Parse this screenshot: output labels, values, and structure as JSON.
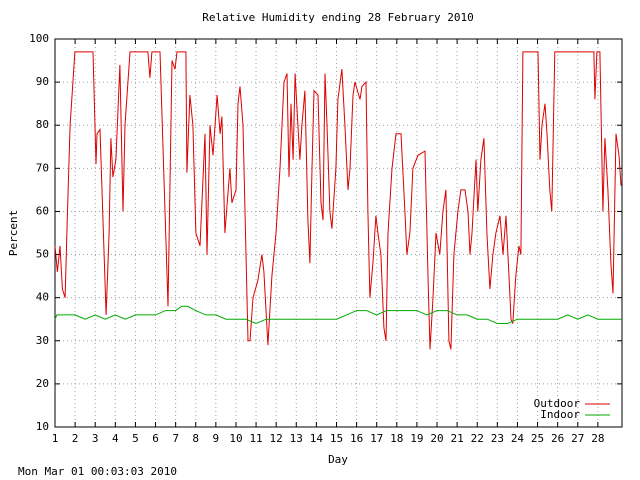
{
  "chart_data": {
    "type": "line",
    "title": "Relative Humidity ending 28 February 2010",
    "xlabel": "Day",
    "ylabel": "Percent",
    "xlim": [
      1,
      29.2
    ],
    "ylim": [
      10,
      100
    ],
    "xticks": [
      1,
      2,
      3,
      4,
      5,
      6,
      7,
      8,
      9,
      10,
      11,
      12,
      13,
      14,
      15,
      16,
      17,
      18,
      19,
      20,
      21,
      22,
      23,
      24,
      25,
      26,
      27,
      28
    ],
    "yticks": [
      10,
      20,
      30,
      40,
      50,
      60,
      70,
      80,
      90,
      100
    ],
    "grid": true,
    "legend": "lower right",
    "series": [
      {
        "name": "Outdoor",
        "color": "#dd0000",
        "x": [
          1.0,
          1.12,
          1.25,
          1.37,
          1.5,
          1.62,
          1.75,
          1.99,
          2.89,
          3.04,
          3.09,
          3.24,
          3.54,
          3.69,
          3.78,
          3.88,
          4.03,
          4.23,
          4.38,
          4.48,
          4.73,
          5.62,
          5.72,
          5.82,
          6.22,
          6.62,
          6.82,
          6.97,
          7.07,
          7.51,
          7.56,
          7.71,
          7.86,
          8.01,
          8.21,
          8.46,
          8.56,
          8.71,
          8.86,
          9.06,
          9.21,
          9.3,
          9.45,
          9.7,
          9.8,
          10.0,
          10.1,
          10.2,
          10.35,
          10.6,
          10.7,
          10.85,
          11.09,
          11.29,
          11.39,
          11.59,
          11.79,
          11.99,
          12.19,
          12.39,
          12.54,
          12.64,
          12.74,
          12.84,
          12.94,
          13.08,
          13.18,
          13.28,
          13.43,
          13.58,
          13.68,
          13.78,
          13.88,
          14.08,
          14.23,
          14.33,
          14.43,
          14.53,
          14.67,
          14.77,
          14.97,
          15.07,
          15.27,
          15.42,
          15.57,
          15.67,
          15.82,
          15.92,
          16.17,
          16.27,
          16.47,
          16.56,
          16.66,
          16.81,
          16.96,
          17.06,
          17.21,
          17.36,
          17.46,
          17.56,
          17.76,
          17.96,
          18.21,
          18.4,
          18.5,
          18.65,
          18.8,
          19.05,
          19.4,
          19.55,
          19.65,
          19.8,
          19.95,
          20.14,
          20.29,
          20.44,
          20.59,
          20.69,
          20.84,
          21.04,
          21.19,
          21.39,
          21.54,
          21.64,
          21.74,
          21.94,
          22.03,
          22.18,
          22.33,
          22.48,
          22.63,
          22.78,
          22.93,
          23.13,
          23.28,
          23.43,
          23.58,
          23.68,
          23.77,
          23.92,
          24.07,
          24.17,
          24.27,
          25.02,
          25.12,
          25.22,
          25.37,
          25.47,
          25.61,
          25.71,
          25.86,
          27.8,
          27.85,
          27.95,
          28.1,
          28.25,
          28.35,
          28.5,
          28.65,
          28.75,
          28.9,
          29.05,
          29.15
        ],
        "values": [
          52,
          46,
          52,
          42,
          40,
          60,
          80,
          97,
          97,
          71,
          78,
          79,
          36,
          55,
          77,
          68,
          72,
          94,
          60,
          80,
          97,
          97,
          91,
          97,
          97,
          38,
          95,
          93,
          97,
          97,
          69,
          87,
          80,
          55,
          52,
          78,
          50,
          80,
          73,
          87,
          78,
          82,
          55,
          70,
          62,
          65,
          85,
          89,
          80,
          30,
          30,
          40,
          44,
          50,
          46,
          29,
          45,
          55,
          70,
          90,
          92,
          68,
          85,
          72,
          92,
          80,
          72,
          80,
          88,
          58,
          48,
          70,
          88,
          87,
          62,
          58,
          92,
          80,
          60,
          56,
          70,
          86,
          93,
          80,
          65,
          70,
          87,
          90,
          86,
          89,
          90,
          60,
          40,
          48,
          59,
          55,
          50,
          33,
          30,
          55,
          70,
          78,
          78,
          60,
          50,
          55,
          70,
          73,
          74,
          45,
          28,
          40,
          55,
          50,
          60,
          65,
          30,
          28,
          50,
          60,
          65,
          65,
          60,
          50,
          55,
          72,
          60,
          72,
          77,
          55,
          42,
          50,
          55,
          59,
          50,
          59,
          45,
          35,
          34,
          45,
          52,
          50,
          97,
          97,
          72,
          80,
          85,
          78,
          65,
          60,
          97,
          97,
          86,
          97,
          97,
          60,
          77,
          65,
          48,
          41,
          78,
          73,
          66
        ]
      },
      {
        "name": "Indoor",
        "color": "#00aa00",
        "x": [
          1,
          1.1,
          1.5,
          2,
          2.5,
          3,
          3.5,
          4,
          4.5,
          5,
          5.5,
          6,
          6.5,
          7,
          7.3,
          7.6,
          8,
          8.5,
          9,
          9.5,
          10,
          10.5,
          11,
          11.5,
          12,
          12.5,
          13,
          13.5,
          14,
          14.5,
          15,
          15.5,
          16,
          16.5,
          17,
          17.5,
          18,
          18.5,
          19,
          19.5,
          20,
          20.5,
          21,
          21.5,
          22,
          22.5,
          23,
          23.5,
          24,
          24.5,
          25,
          25.5,
          26,
          26.5,
          27,
          27.5,
          28,
          28.5,
          29.2
        ],
        "values": [
          35,
          36,
          36,
          36,
          35,
          36,
          35,
          36,
          35,
          36,
          36,
          36,
          37,
          37,
          38,
          38,
          37,
          36,
          36,
          35,
          35,
          35,
          34,
          35,
          35,
          35,
          35,
          35,
          35,
          35,
          35,
          36,
          37,
          37,
          36,
          37,
          37,
          37,
          37,
          36,
          37,
          37,
          36,
          36,
          35,
          35,
          34,
          34,
          35,
          35,
          35,
          35,
          35,
          36,
          35,
          36,
          35,
          35,
          35
        ]
      }
    ]
  },
  "timestamp": "Mon Mar 01 00:03:03 2010"
}
